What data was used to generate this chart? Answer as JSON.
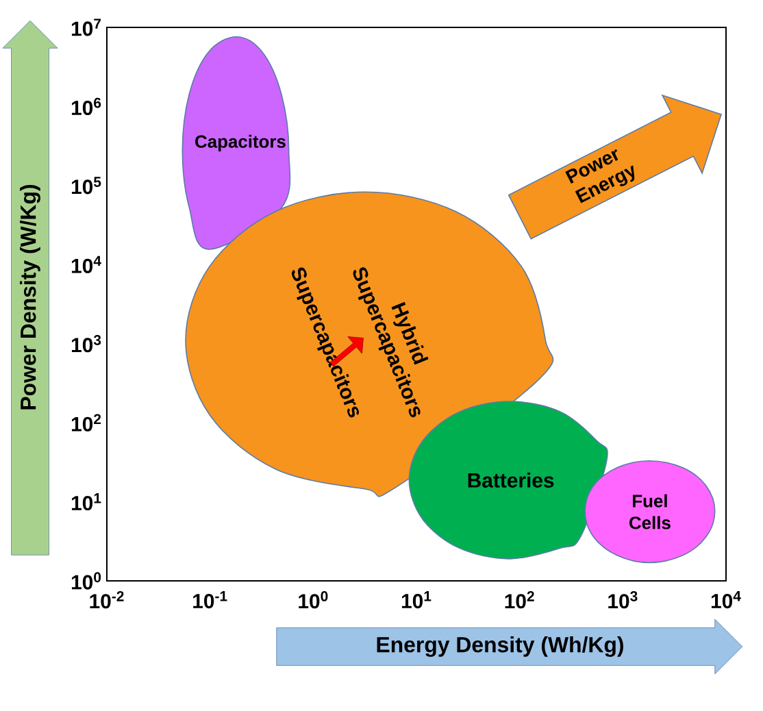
{
  "chart_data": {
    "type": "area",
    "log": "xy",
    "xlabel": "Energy Density (Wh/Kg)",
    "ylabel": "Power Density (W/Kg)",
    "xlim": [
      0.01,
      10000
    ],
    "ylim": [
      1,
      10000000
    ],
    "xticks": [
      {
        "value": 0.01,
        "label": "10$^{-2}$"
      },
      {
        "value": 0.1,
        "label": "10$^{-1}$"
      },
      {
        "value": 1,
        "label": "10$^{0}$"
      },
      {
        "value": 10,
        "label": "10$^{1}$"
      },
      {
        "value": 100,
        "label": "10$^{2}$"
      },
      {
        "value": 1000,
        "label": "10$^{3}$"
      },
      {
        "value": 10000,
        "label": "10$^{4}$"
      }
    ],
    "yticks": [
      {
        "value": 1,
        "label": "10$^{0}$"
      },
      {
        "value": 10,
        "label": "10$^{1}$"
      },
      {
        "value": 100,
        "label": "10$^{2}$"
      },
      {
        "value": 1000,
        "label": "10$^{3}$"
      },
      {
        "value": 10000,
        "label": "10$^{4}$"
      },
      {
        "value": 100000,
        "label": "10$^{5}$"
      },
      {
        "value": 1000000,
        "label": "10$^{6}$"
      },
      {
        "value": 10000000,
        "label": "10$^{7}$"
      }
    ],
    "series": [
      {
        "name": "Capacitors",
        "color": "#cc66ff",
        "x": [
          0.58,
          0.49,
          0.32,
          0.18,
          0.097,
          0.063,
          0.054,
          0.063,
          0.097,
          0.49
        ],
        "values": [
          275000,
          1450000,
          4900000,
          7600000,
          4900000,
          1450000,
          275000,
          52000,
          15600,
          52000
        ]
      },
      {
        "name": "Supercapacitors",
        "color": "#f7941d",
        "x": [
          178,
          104,
          24,
          3.2,
          0.43,
          0.099,
          0.058,
          0.099,
          0.43,
          3.2,
          6.4,
          155
        ],
        "values": [
          1100,
          9500,
          47000,
          83000,
          47000,
          9500,
          1100,
          126,
          26,
          14.5,
          15.4,
          357
        ]
      },
      {
        "name": "Batteries",
        "color": "#00b050",
        "x": [
          700,
          560,
          250,
          80,
          26,
          11.5,
          8.5,
          11.5,
          26,
          80,
          250,
          393
        ],
        "values": [
          34,
          59,
          137,
          186,
          137,
          59,
          19,
          6,
          2.6,
          1.9,
          2.6,
          3.7
        ]
      },
      {
        "name": "Fuel Cells",
        "color": "#ff66ff",
        "x": [
          7800,
          6400,
          3800,
          1800,
          880,
          520,
          430,
          520,
          880,
          1800,
          3800,
          6400
        ],
        "values": [
          7.6,
          16,
          27,
          33,
          27,
          16,
          7.6,
          3.6,
          2.1,
          1.7,
          2.1,
          3.6
        ]
      }
    ],
    "annotations": [
      "Hybrid Supercapacitors",
      "Power Energy"
    ]
  }
}
